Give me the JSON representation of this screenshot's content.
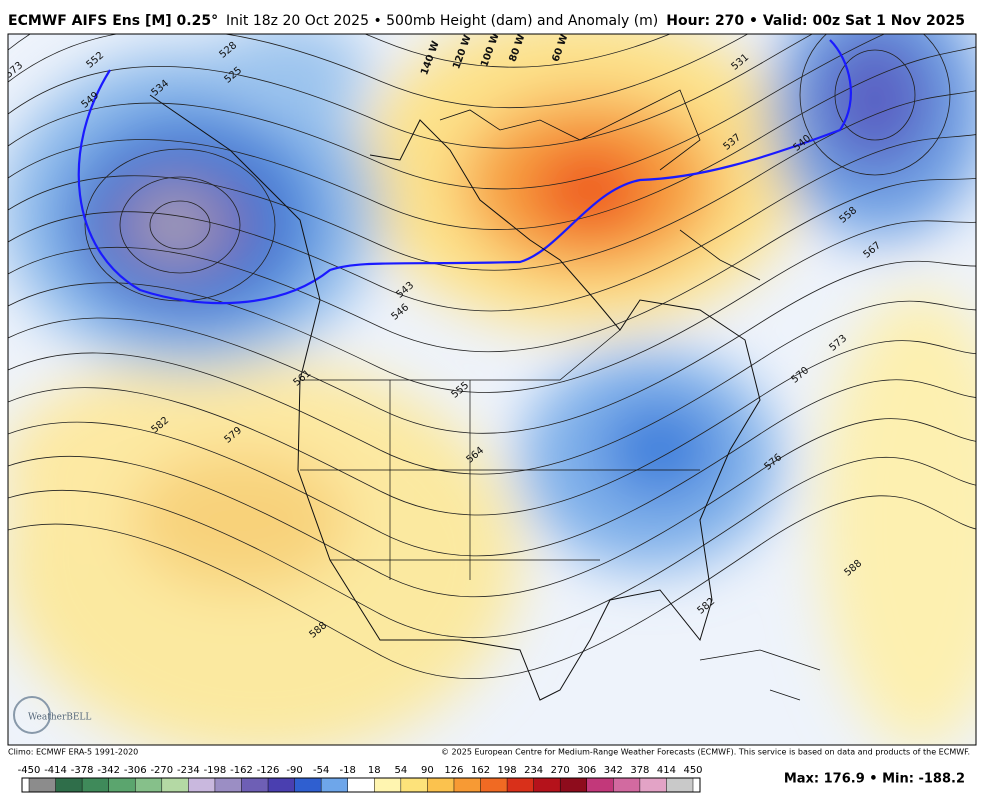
{
  "header": {
    "model": "ECMWF AIFS Ens [M] 0.25°",
    "subtitle": "Init 18z 20 Oct 2025 • 500mb Height (dam) and Anomaly (m)",
    "valid": "Hour: 270 • Valid: 00z Sat 1 Nov 2025"
  },
  "map": {
    "contour_labels": [
      "573",
      "552",
      "528",
      "549",
      "525",
      "534",
      "543",
      "546",
      "561",
      "582",
      "579",
      "555",
      "564",
      "588",
      "537",
      "540",
      "531",
      "558",
      "567",
      "573",
      "570",
      "576",
      "588",
      "582"
    ],
    "longitude_labels": [
      "140 W",
      "120 W",
      "100 W",
      "80 W",
      "60 W"
    ],
    "logo": "WeatherBELL"
  },
  "footer": {
    "climo": "Climo: ECMWF ERA-5 1991-2020",
    "copyright": "© 2025 European Centre for Medium-Range Weather Forecasts (ECMWF). This service is based on data and products of the ECMWF.",
    "stats": "Max: 176.9 • Min: -188.2"
  },
  "colorbar": {
    "ticks": [
      -450,
      -414,
      -378,
      -342,
      -306,
      -270,
      -234,
      -198,
      -162,
      -126,
      -90,
      -54,
      -18,
      18,
      54,
      90,
      126,
      162,
      198,
      234,
      270,
      306,
      342,
      378,
      414,
      450
    ],
    "colors": [
      "#8c8c8c",
      "#2f6e4a",
      "#3f8a5a",
      "#5ba56e",
      "#86c08a",
      "#b4d9a4",
      "#c9b8de",
      "#9b8ec4",
      "#6e5fb5",
      "#4a3fb0",
      "#2f5fd0",
      "#6ea6ea",
      "#ffffff",
      "#fff5b0",
      "#fde27a",
      "#fbc24e",
      "#f79a34",
      "#f06a23",
      "#d9301a",
      "#b5121b",
      "#8e0c1c",
      "#c2387a",
      "#d26aa0",
      "#e3a3c6",
      "#c9c9c9"
    ]
  }
}
